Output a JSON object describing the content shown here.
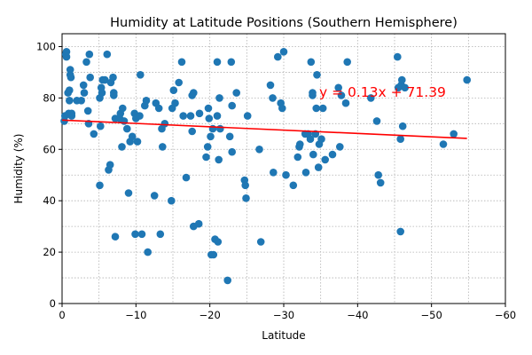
{
  "chart_data": {
    "type": "scatter",
    "title": "Humidity at Latitude Positions (Southern Hemisphere)",
    "xlabel": "Latitude",
    "ylabel": "Humidity (%)",
    "xlim": [
      0,
      -60
    ],
    "ylim": [
      0,
      105
    ],
    "xticks": [
      0,
      -10,
      -20,
      -30,
      -40,
      -50,
      -60
    ],
    "yticks": [
      0,
      20,
      40,
      60,
      80,
      100
    ],
    "grid": true,
    "point_color": "#1f77b4",
    "regression": {
      "label": "y = 0.13x + 71.39",
      "slope": 0.13,
      "intercept": 71.39,
      "x_range": [
        0,
        -54.8
      ],
      "color": "#ff0000"
    },
    "points": [
      [
        -0.3,
        71
      ],
      [
        -0.4,
        73
      ],
      [
        -0.5,
        97
      ],
      [
        -0.6,
        96
      ],
      [
        -0.6,
        98
      ],
      [
        -0.8,
        82
      ],
      [
        -0.9,
        74
      ],
      [
        -1.0,
        83
      ],
      [
        -1.0,
        79
      ],
      [
        -1.1,
        91
      ],
      [
        -1.1,
        89
      ],
      [
        -1.2,
        88
      ],
      [
        -1.3,
        73
      ],
      [
        -1.3,
        74
      ],
      [
        -2.0,
        79
      ],
      [
        -2.6,
        79
      ],
      [
        -2.9,
        85
      ],
      [
        -3.0,
        82
      ],
      [
        -3.3,
        94
      ],
      [
        -3.5,
        75
      ],
      [
        -3.6,
        70
      ],
      [
        -3.7,
        97
      ],
      [
        -3.8,
        88
      ],
      [
        -4.3,
        66
      ],
      [
        -5.1,
        46
      ],
      [
        -5.1,
        80
      ],
      [
        -5.2,
        69
      ],
      [
        -5.3,
        84
      ],
      [
        -5.4,
        82
      ],
      [
        -5.5,
        87
      ],
      [
        -5.8,
        87
      ],
      [
        -6.1,
        97
      ],
      [
        -6.3,
        52
      ],
      [
        -6.5,
        54
      ],
      [
        -6.6,
        86
      ],
      [
        -6.9,
        88
      ],
      [
        -7.0,
        81
      ],
      [
        -7.0,
        82
      ],
      [
        -7.2,
        72
      ],
      [
        -7.2,
        26
      ],
      [
        -7.8,
        72
      ],
      [
        -7.9,
        74
      ],
      [
        -8.1,
        61
      ],
      [
        -8.2,
        76
      ],
      [
        -8.4,
        71
      ],
      [
        -8.8,
        68
      ],
      [
        -9.0,
        43
      ],
      [
        -9.2,
        63
      ],
      [
        -9.5,
        65
      ],
      [
        -9.8,
        74
      ],
      [
        -9.9,
        27
      ],
      [
        -10.0,
        72
      ],
      [
        -10.2,
        63
      ],
      [
        -10.5,
        73
      ],
      [
        -10.6,
        89
      ],
      [
        -10.8,
        27
      ],
      [
        -11.2,
        77
      ],
      [
        -11.4,
        79
      ],
      [
        -11.6,
        20
      ],
      [
        -12.5,
        42
      ],
      [
        -12.7,
        78
      ],
      [
        -13.1,
        76
      ],
      [
        -13.3,
        27
      ],
      [
        -13.5,
        68
      ],
      [
        -13.6,
        61
      ],
      [
        -13.9,
        70
      ],
      [
        -14.8,
        40
      ],
      [
        -14.9,
        76
      ],
      [
        -15.1,
        83
      ],
      [
        -15.3,
        78
      ],
      [
        -15.8,
        86
      ],
      [
        -16.2,
        94
      ],
      [
        -16.4,
        73
      ],
      [
        -16.8,
        49
      ],
      [
        -17.4,
        73
      ],
      [
        -17.6,
        67
      ],
      [
        -17.6,
        81
      ],
      [
        -17.8,
        82
      ],
      [
        -17.8,
        30
      ],
      [
        -18.5,
        31
      ],
      [
        -18.6,
        74
      ],
      [
        -19.5,
        57
      ],
      [
        -19.7,
        61
      ],
      [
        -19.8,
        76
      ],
      [
        -19.9,
        72
      ],
      [
        -20.1,
        65
      ],
      [
        -20.2,
        19
      ],
      [
        -20.4,
        68
      ],
      [
        -20.5,
        19
      ],
      [
        -20.7,
        25
      ],
      [
        -21.0,
        94
      ],
      [
        -21.0,
        73
      ],
      [
        -21.1,
        24
      ],
      [
        -21.2,
        56
      ],
      [
        -21.3,
        80
      ],
      [
        -21.4,
        68
      ],
      [
        -22.4,
        9
      ],
      [
        -22.7,
        65
      ],
      [
        -22.9,
        94
      ],
      [
        -23.0,
        77
      ],
      [
        -23.0,
        59
      ],
      [
        -23.6,
        82
      ],
      [
        -24.7,
        48
      ],
      [
        -24.8,
        46
      ],
      [
        -24.9,
        41
      ],
      [
        -25.1,
        73
      ],
      [
        -26.7,
        60
      ],
      [
        -26.9,
        24
      ],
      [
        -28.2,
        85
      ],
      [
        -28.5,
        80
      ],
      [
        -28.6,
        51
      ],
      [
        -29.2,
        96
      ],
      [
        -29.6,
        78
      ],
      [
        -29.8,
        76
      ],
      [
        -30.0,
        98
      ],
      [
        -30.3,
        50
      ],
      [
        -31.3,
        46
      ],
      [
        -31.9,
        57
      ],
      [
        -32.1,
        61
      ],
      [
        -32.2,
        62
      ],
      [
        -32.9,
        66
      ],
      [
        -33.0,
        51
      ],
      [
        -33.3,
        66
      ],
      [
        -33.6,
        64
      ],
      [
        -33.7,
        94
      ],
      [
        -33.9,
        82
      ],
      [
        -33.9,
        81
      ],
      [
        -34.0,
        58
      ],
      [
        -34.3,
        66
      ],
      [
        -34.4,
        76
      ],
      [
        -34.5,
        89
      ],
      [
        -34.7,
        53
      ],
      [
        -34.8,
        62
      ],
      [
        -35.1,
        64
      ],
      [
        -35.3,
        76
      ],
      [
        -35.6,
        56
      ],
      [
        -36.6,
        58
      ],
      [
        -37.4,
        84
      ],
      [
        -37.6,
        61
      ],
      [
        -37.8,
        81
      ],
      [
        -38.4,
        78
      ],
      [
        -38.6,
        94
      ],
      [
        -41.8,
        80
      ],
      [
        -42.6,
        71
      ],
      [
        -42.8,
        50
      ],
      [
        -43.1,
        47
      ],
      [
        -45.4,
        96
      ],
      [
        -45.5,
        84
      ],
      [
        -45.8,
        64
      ],
      [
        -45.8,
        28
      ],
      [
        -45.9,
        85
      ],
      [
        -46.0,
        87
      ],
      [
        -46.1,
        69
      ],
      [
        -46.4,
        84
      ],
      [
        -51.6,
        62
      ],
      [
        -53.0,
        66
      ],
      [
        -54.8,
        87
      ]
    ]
  }
}
